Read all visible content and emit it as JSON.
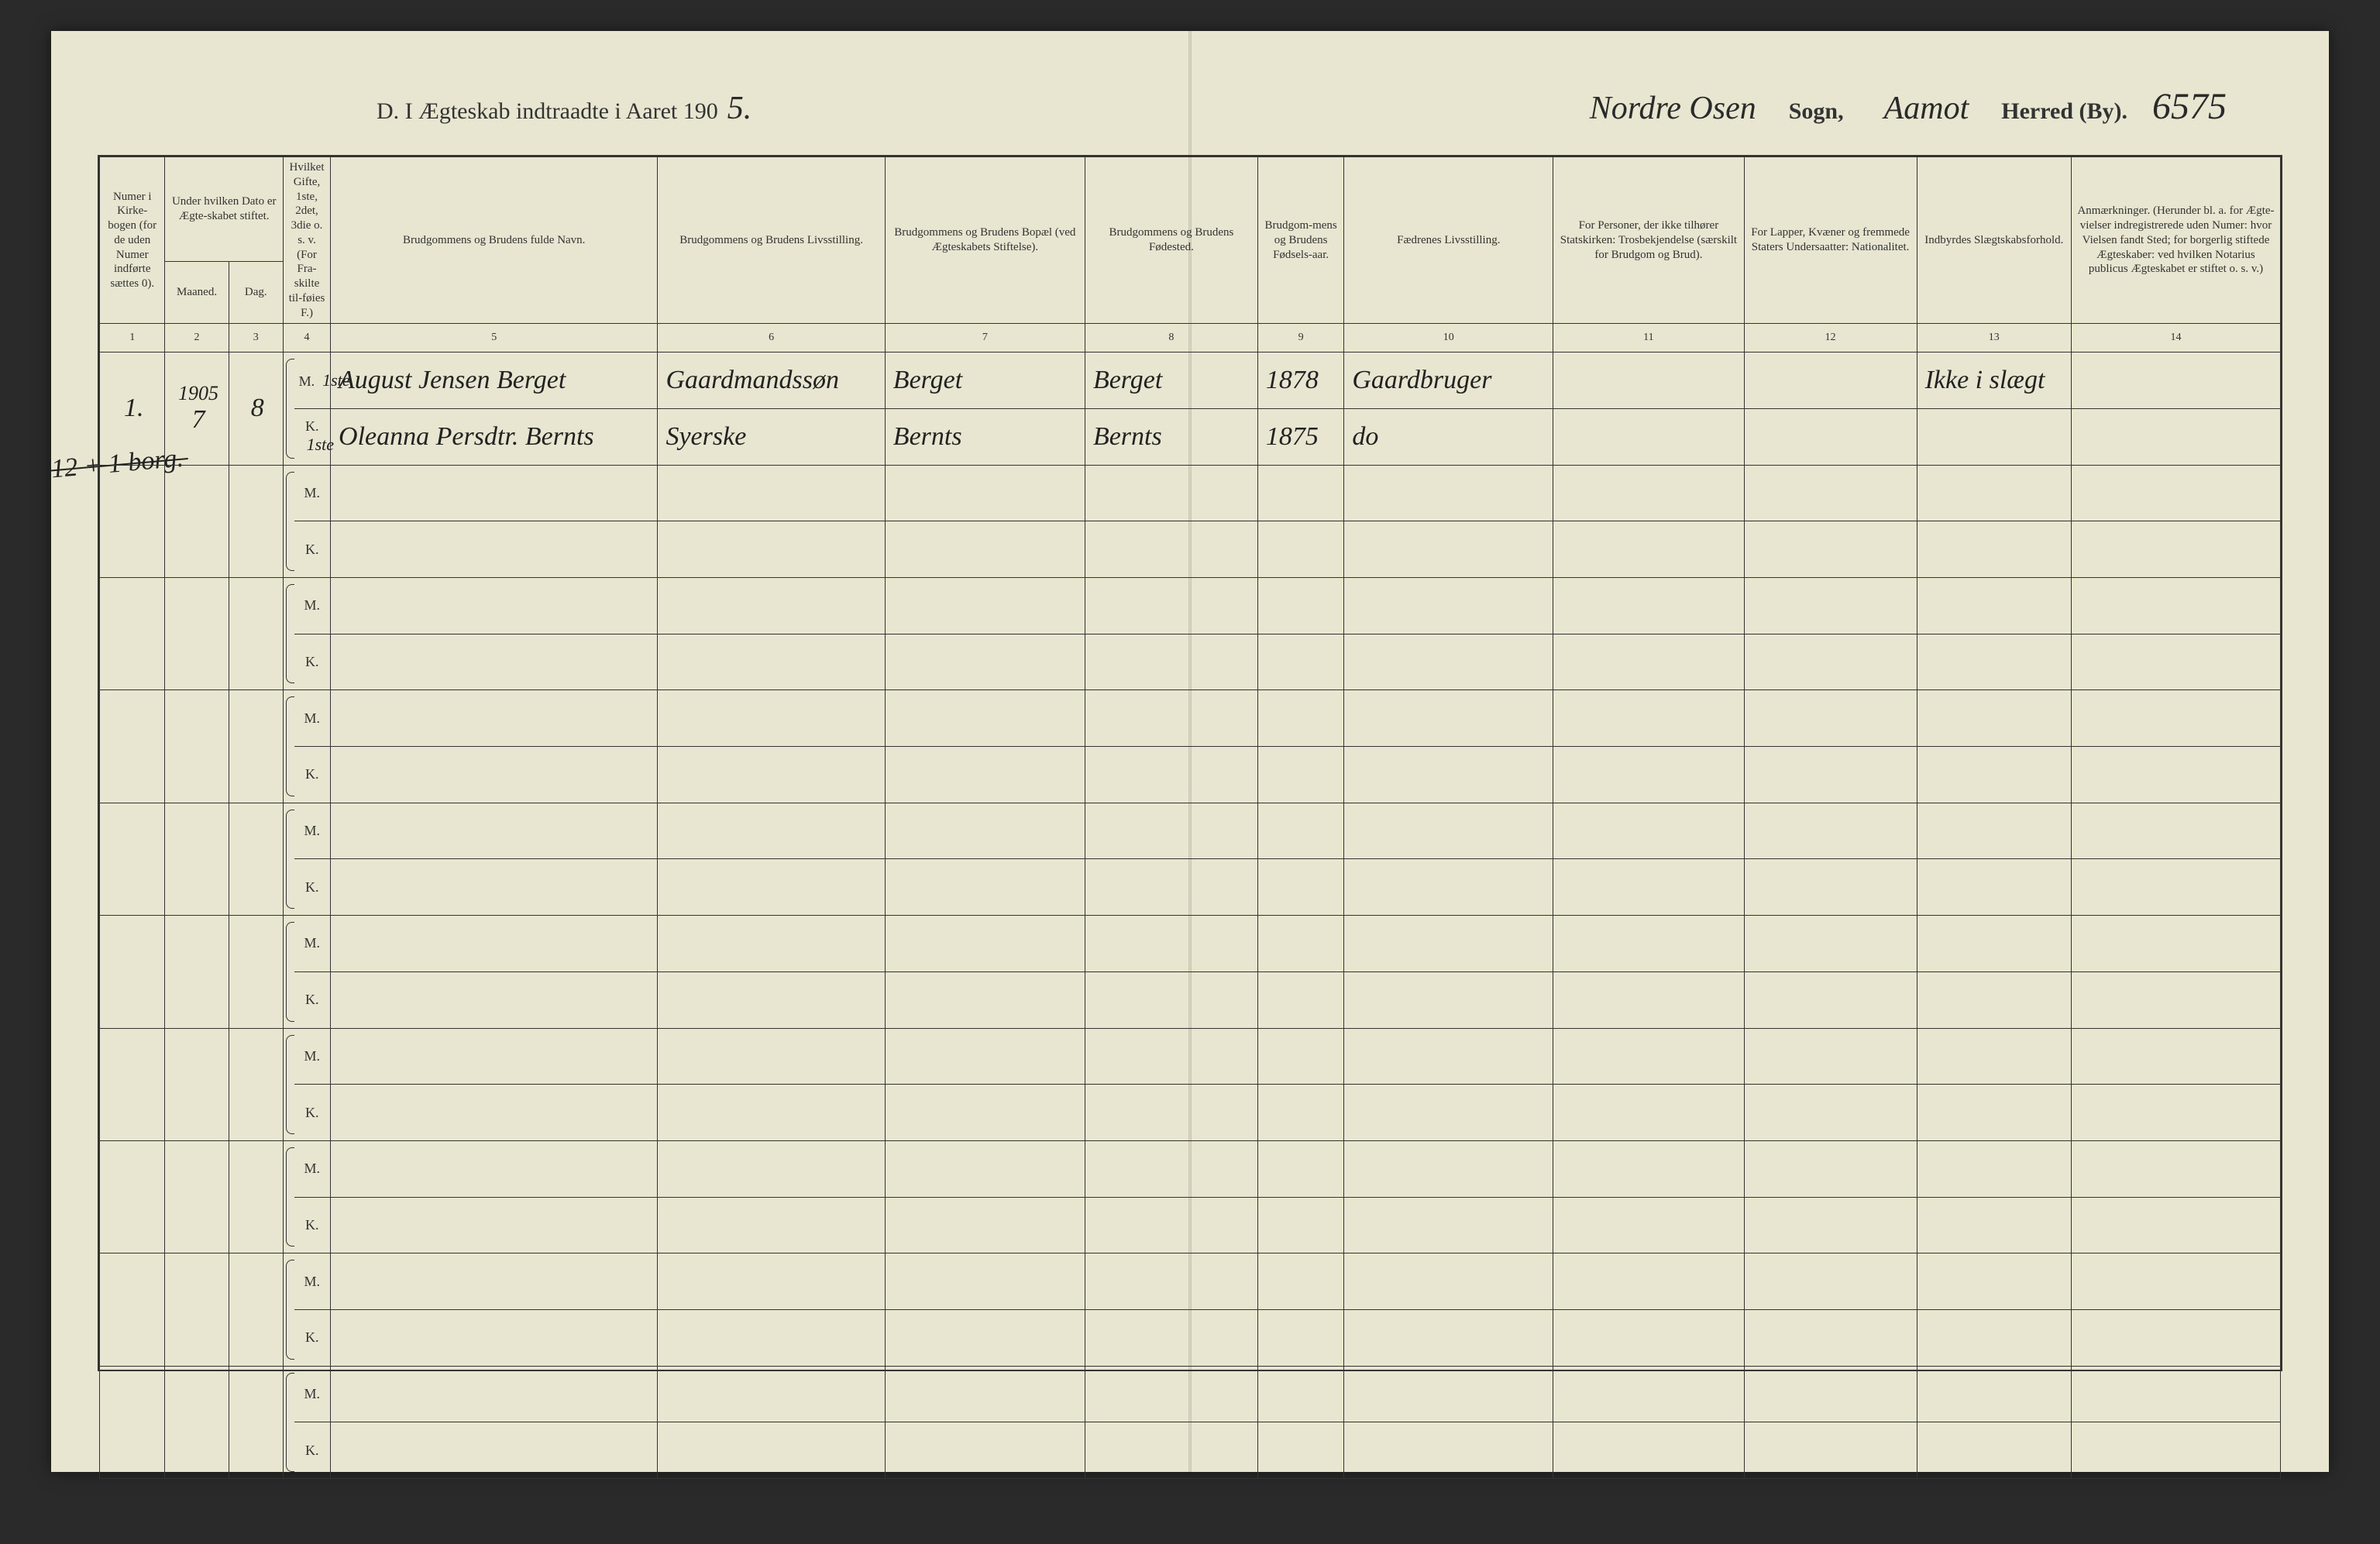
{
  "colors": {
    "paper": "#e8e5d0",
    "ink": "#333333",
    "handwriting": "#222222",
    "background": "#2a2a2a"
  },
  "header": {
    "title_prefix": "D.   I Ægteskab indtraadte i Aaret 190",
    "year_suffix": "5.",
    "sogn_value": "Nordre Osen",
    "sogn_label": "Sogn,",
    "herred_value": "Aamot",
    "herred_label": "Herred (By).",
    "page_number": "6575"
  },
  "columns": {
    "c1": "Numer i Kirke-bogen (for de uden Numer indførte sættes 0).",
    "c2_3": "Under hvilken Dato er Ægte-skabet stiftet.",
    "c2": "Maaned.",
    "c3": "Dag.",
    "c4": "Hvilket Gifte, 1ste, 2det, 3die o. s. v. (For Fra-skilte til-føies F.)",
    "c5": "Brudgommens og Brudens fulde Navn.",
    "c6": "Brudgommens og Brudens Livsstilling.",
    "c7": "Brudgommens og Brudens Bopæl (ved Ægteskabets Stiftelse).",
    "c8": "Brudgommens og Brudens Fødested.",
    "c9": "Brudgom-mens og Brudens Fødsels-aar.",
    "c10": "Fædrenes Livsstilling.",
    "c11": "For Personer, der ikke tilhører Statskirken: Trosbekjendelse (særskilt for Brudgom og Brud).",
    "c12": "For Lapper, Kvæner og fremmede Staters Undersaatter: Nationalitet.",
    "c13": "Indbyrdes Slægtskabsforhold.",
    "c14": "Anmærkninger. (Herunder bl. a. for Ægte-vielser indregistrerede uden Numer: hvor Vielsen fandt Sted; for borgerlig stiftede Ægteskaber: ved hvilken Notarius publicus Ægteskabet er stiftet o. s. v.)"
  },
  "column_numbers": [
    "1",
    "2",
    "3",
    "4",
    "5",
    "6",
    "7",
    "8",
    "9",
    "10",
    "11",
    "12",
    "13",
    "14"
  ],
  "mk_labels": {
    "m": "M.",
    "k": "K."
  },
  "entries": [
    {
      "num": "1.",
      "year_note": "1905",
      "month": "7",
      "day": "8",
      "groom": {
        "gifte": "1ste",
        "name": "August Jensen Berget",
        "occupation": "Gaardmandssøn",
        "residence": "Berget",
        "birthplace": "Berget",
        "birthyear": "1878",
        "father_occ": "Gaardbruger",
        "kinship": "Ikke i slægt"
      },
      "bride": {
        "gifte": "1ste",
        "name": "Oleanna Persdtr. Bernts",
        "occupation": "Syerske",
        "residence": "Bernts",
        "birthplace": "Bernts",
        "birthyear": "1875",
        "father_occ": "do",
        "kinship": ""
      }
    }
  ],
  "blank_row_pairs": 9,
  "margin_note": "12 + 1 borg."
}
